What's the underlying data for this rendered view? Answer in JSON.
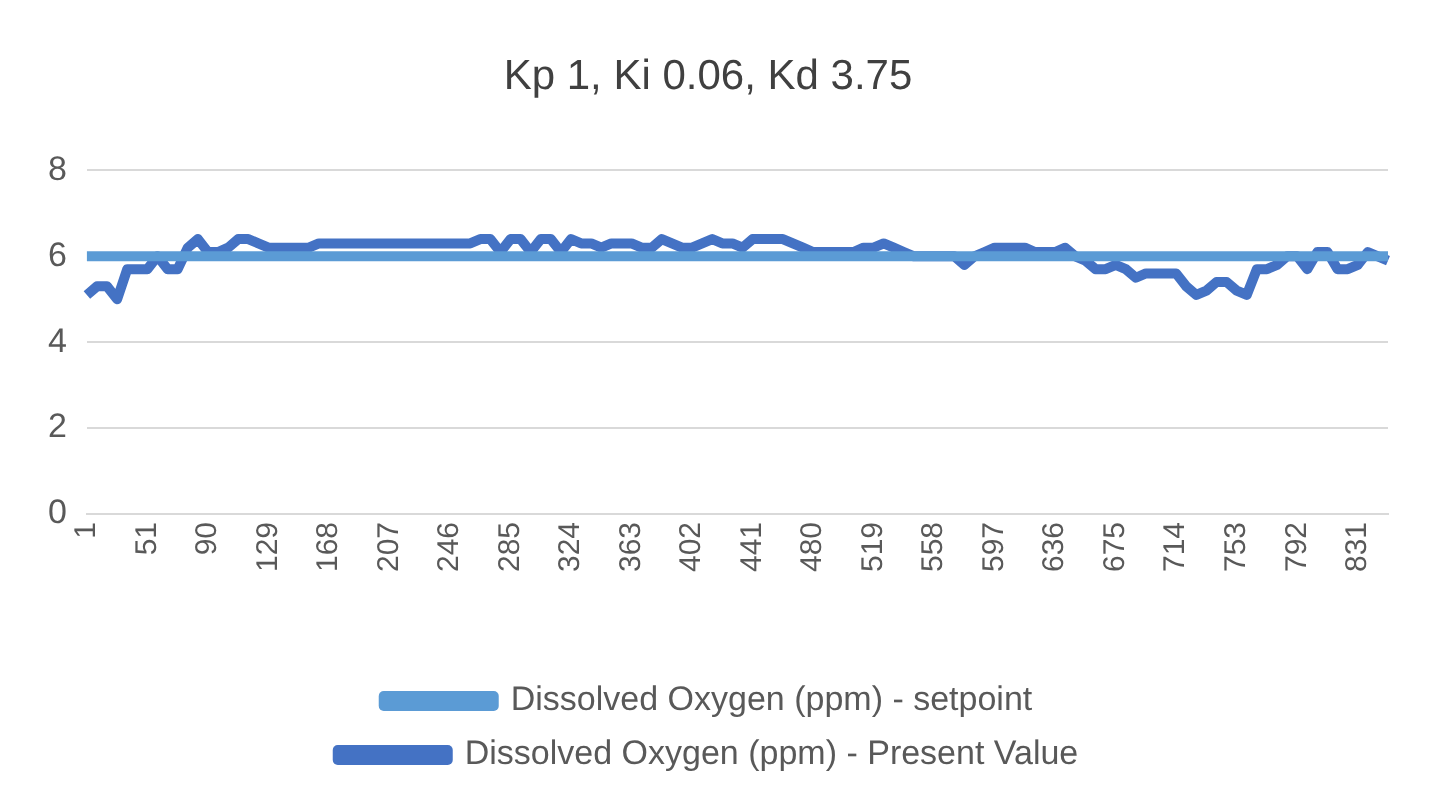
{
  "chart_data": {
    "type": "line",
    "title": "Kp 1, Ki 0.06, Kd 3.75",
    "categories": [
      "1",
      null,
      null,
      null,
      null,
      null,
      "51",
      null,
      null,
      null,
      null,
      null,
      "90",
      null,
      null,
      null,
      null,
      null,
      "129",
      null,
      null,
      null,
      null,
      null,
      "168",
      null,
      null,
      null,
      null,
      null,
      "207",
      null,
      null,
      null,
      null,
      null,
      "246",
      null,
      null,
      null,
      null,
      null,
      "285",
      null,
      null,
      null,
      null,
      null,
      "324",
      null,
      null,
      null,
      null,
      null,
      "363",
      null,
      null,
      null,
      null,
      null,
      "402",
      null,
      null,
      null,
      null,
      null,
      "441",
      null,
      null,
      null,
      null,
      null,
      "480",
      null,
      null,
      null,
      null,
      null,
      "519",
      null,
      null,
      null,
      null,
      null,
      "558",
      null,
      null,
      null,
      null,
      null,
      "597",
      null,
      null,
      null,
      null,
      null,
      "636",
      null,
      null,
      null,
      null,
      null,
      "675",
      null,
      null,
      null,
      null,
      null,
      "714",
      null,
      null,
      null,
      null,
      null,
      "753",
      null,
      null,
      null,
      null,
      null,
      "792",
      null,
      null,
      null,
      null,
      null,
      "831",
      null,
      null,
      null
    ],
    "series": [
      {
        "name": "Dissolved Oxygen (ppm) - setpoint",
        "color": "#5b9bd5",
        "values": [
          6,
          6,
          6,
          6,
          6,
          6,
          6,
          6,
          6,
          6,
          6,
          6,
          6,
          6,
          6,
          6,
          6,
          6,
          6,
          6,
          6,
          6,
          6,
          6,
          6,
          6,
          6,
          6,
          6,
          6,
          6,
          6,
          6,
          6,
          6,
          6,
          6,
          6,
          6,
          6,
          6,
          6,
          6,
          6,
          6,
          6,
          6,
          6,
          6,
          6,
          6,
          6,
          6,
          6,
          6,
          6,
          6,
          6,
          6,
          6,
          6,
          6,
          6,
          6,
          6,
          6,
          6,
          6,
          6,
          6,
          6,
          6,
          6,
          6,
          6,
          6,
          6,
          6,
          6,
          6,
          6,
          6,
          6,
          6,
          6,
          6,
          6,
          6,
          6,
          6,
          6,
          6,
          6,
          6,
          6,
          6,
          6,
          6,
          6,
          6,
          6,
          6,
          6,
          6,
          6,
          6,
          6,
          6,
          6,
          6,
          6,
          6,
          6,
          6,
          6,
          6,
          6,
          6,
          6,
          6,
          6,
          6,
          6,
          6,
          6,
          6,
          6,
          6,
          6,
          6
        ]
      },
      {
        "name": "Dissolved Oxygen (ppm) - Present Value",
        "color": "#4472c4",
        "values": [
          5.1,
          5.3,
          5.3,
          5.0,
          5.7,
          5.7,
          5.7,
          6.0,
          5.7,
          5.7,
          6.2,
          6.4,
          6.1,
          6.1,
          6.2,
          6.4,
          6.4,
          6.3,
          6.2,
          6.2,
          6.2,
          6.2,
          6.2,
          6.3,
          6.3,
          6.3,
          6.3,
          6.3,
          6.3,
          6.3,
          6.3,
          6.3,
          6.3,
          6.3,
          6.3,
          6.3,
          6.3,
          6.3,
          6.3,
          6.4,
          6.4,
          6.1,
          6.4,
          6.4,
          6.1,
          6.4,
          6.4,
          6.1,
          6.4,
          6.3,
          6.3,
          6.2,
          6.3,
          6.3,
          6.3,
          6.2,
          6.2,
          6.4,
          6.3,
          6.2,
          6.2,
          6.3,
          6.4,
          6.3,
          6.3,
          6.2,
          6.4,
          6.4,
          6.4,
          6.4,
          6.3,
          6.2,
          6.1,
          6.1,
          6.1,
          6.1,
          6.1,
          6.2,
          6.2,
          6.3,
          6.2,
          6.1,
          6.0,
          6.0,
          6.0,
          6.0,
          6.0,
          5.8,
          6.0,
          6.1,
          6.2,
          6.2,
          6.2,
          6.2,
          6.1,
          6.1,
          6.1,
          6.2,
          6.0,
          5.9,
          5.7,
          5.7,
          5.8,
          5.7,
          5.5,
          5.6,
          5.6,
          5.6,
          5.6,
          5.3,
          5.1,
          5.2,
          5.4,
          5.4,
          5.2,
          5.1,
          5.7,
          5.7,
          5.8,
          6.0,
          6.0,
          5.7,
          6.1,
          6.1,
          5.7,
          5.7,
          5.8,
          6.1,
          6.0,
          5.9
        ]
      }
    ],
    "ylim": [
      0,
      8
    ],
    "yticks": [
      0,
      2,
      4,
      6,
      8
    ],
    "grid": "y",
    "legend": "bottom",
    "marker": "none",
    "line_style": "solid"
  }
}
